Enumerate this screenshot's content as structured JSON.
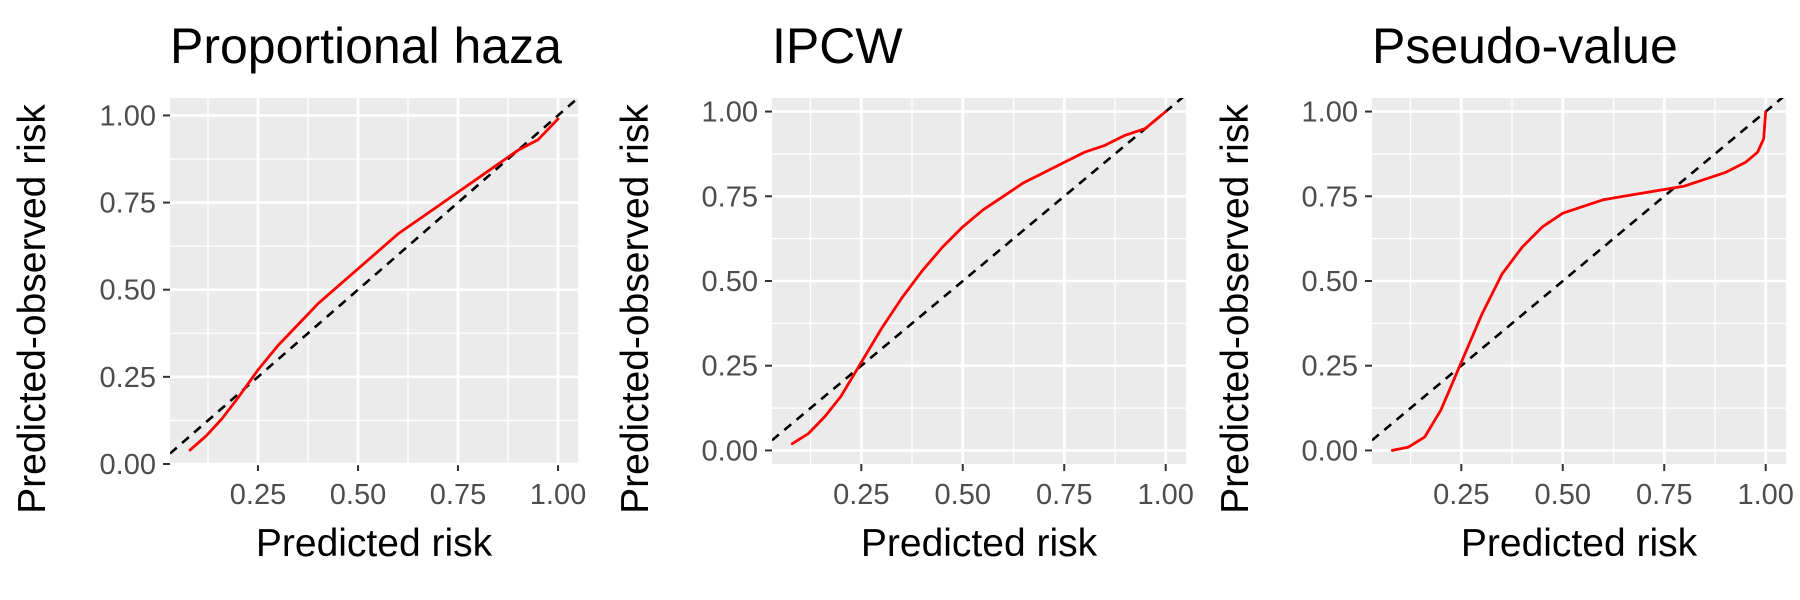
{
  "chart_data": [
    {
      "type": "line",
      "title": "Proportional haza",
      "xlabel": "Predicted risk",
      "ylabel": "Predicted-observed risk",
      "xlim": [
        0.03,
        1.05
      ],
      "ylim": [
        -0.0,
        1.05
      ],
      "x_ticks": [
        0.25,
        0.5,
        0.75,
        1.0
      ],
      "x_tick_labels": [
        "0.25",
        "0.50",
        "0.75",
        "1.00"
      ],
      "y_ticks": [
        0.0,
        0.25,
        0.5,
        0.75,
        1.0
      ],
      "y_tick_labels": [
        "0.00",
        "0.25",
        "0.50",
        "0.75",
        "1.00"
      ],
      "grid": true,
      "series": [
        {
          "color": "#ff0000",
          "x": [
            0.08,
            0.12,
            0.16,
            0.2,
            0.25,
            0.3,
            0.35,
            0.4,
            0.45,
            0.5,
            0.55,
            0.6,
            0.65,
            0.7,
            0.75,
            0.8,
            0.85,
            0.9,
            0.95,
            1.0
          ],
          "y": [
            0.04,
            0.08,
            0.13,
            0.19,
            0.27,
            0.34,
            0.4,
            0.46,
            0.51,
            0.56,
            0.61,
            0.66,
            0.7,
            0.74,
            0.78,
            0.82,
            0.86,
            0.9,
            0.93,
            0.99
          ]
        }
      ],
      "reference_line": {
        "color": "#000000",
        "style": "dashed",
        "slope": 1,
        "intercept": 0
      }
    },
    {
      "type": "line",
      "title": "IPCW",
      "xlabel": "Predicted risk",
      "ylabel": "Predicted-observed risk",
      "xlim": [
        0.03,
        1.05
      ],
      "ylim": [
        -0.04,
        1.04
      ],
      "x_ticks": [
        0.25,
        0.5,
        0.75,
        1.0
      ],
      "x_tick_labels": [
        "0.25",
        "0.50",
        "0.75",
        "1.00"
      ],
      "y_ticks": [
        0.0,
        0.25,
        0.5,
        0.75,
        1.0
      ],
      "y_tick_labels": [
        "0.00",
        "0.25",
        "0.50",
        "0.75",
        "1.00"
      ],
      "grid": true,
      "series": [
        {
          "color": "#ff0000",
          "x": [
            0.08,
            0.12,
            0.16,
            0.2,
            0.25,
            0.3,
            0.35,
            0.4,
            0.45,
            0.5,
            0.55,
            0.6,
            0.65,
            0.7,
            0.75,
            0.8,
            0.85,
            0.9,
            0.95,
            1.0
          ],
          "y": [
            0.02,
            0.05,
            0.1,
            0.16,
            0.26,
            0.36,
            0.45,
            0.53,
            0.6,
            0.66,
            0.71,
            0.75,
            0.79,
            0.82,
            0.85,
            0.88,
            0.9,
            0.93,
            0.95,
            1.0
          ]
        }
      ],
      "reference_line": {
        "color": "#000000",
        "style": "dashed",
        "slope": 1,
        "intercept": 0
      }
    },
    {
      "type": "line",
      "title": "Pseudo-value",
      "xlabel": "Predicted risk",
      "ylabel": "Predicted-observed risk",
      "xlim": [
        0.03,
        1.05
      ],
      "ylim": [
        -0.04,
        1.04
      ],
      "x_ticks": [
        0.25,
        0.5,
        0.75,
        1.0
      ],
      "x_tick_labels": [
        "0.25",
        "0.50",
        "0.75",
        "1.00"
      ],
      "y_ticks": [
        0.0,
        0.25,
        0.5,
        0.75,
        1.0
      ],
      "y_tick_labels": [
        "0.00",
        "0.25",
        "0.50",
        "0.75",
        "1.00"
      ],
      "grid": true,
      "series": [
        {
          "color": "#ff0000",
          "x": [
            0.08,
            0.12,
            0.16,
            0.2,
            0.25,
            0.3,
            0.35,
            0.4,
            0.45,
            0.5,
            0.55,
            0.6,
            0.65,
            0.7,
            0.75,
            0.8,
            0.85,
            0.9,
            0.95,
            0.98,
            0.995,
            1.0
          ],
          "y": [
            0.0,
            0.01,
            0.04,
            0.12,
            0.26,
            0.4,
            0.52,
            0.6,
            0.66,
            0.7,
            0.72,
            0.74,
            0.75,
            0.76,
            0.77,
            0.78,
            0.8,
            0.82,
            0.85,
            0.88,
            0.92,
            1.0
          ]
        }
      ],
      "reference_line": {
        "color": "#000000",
        "style": "dashed",
        "slope": 1,
        "intercept": 0
      }
    }
  ]
}
